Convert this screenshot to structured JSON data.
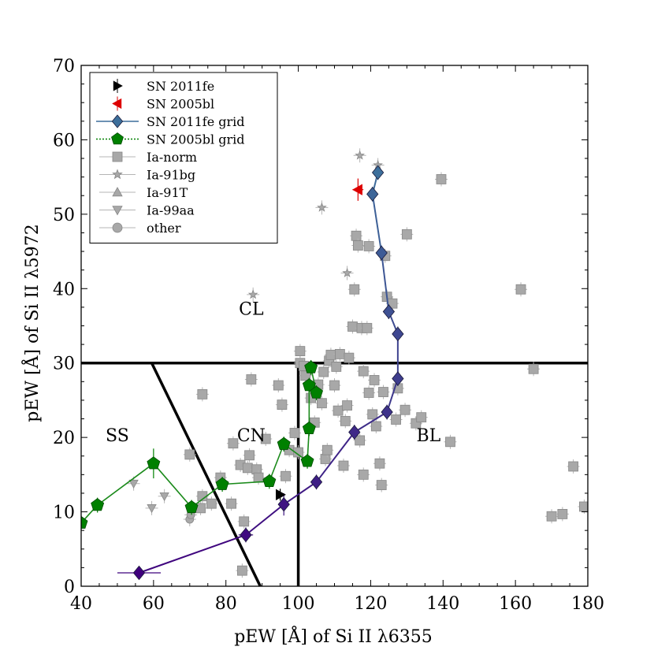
{
  "chart_data": {
    "type": "scatter",
    "xlabel": "pEW [Å] of Si II λ6355",
    "ylabel": "pEW [Å] of Si II λ5972",
    "xlim": [
      40,
      180
    ],
    "ylim": [
      0,
      70
    ],
    "xticks": [
      40,
      60,
      80,
      100,
      120,
      140,
      160,
      180
    ],
    "yticks": [
      0,
      10,
      20,
      30,
      40,
      50,
      60,
      70
    ],
    "colors": {
      "sn2011fe": "#000000",
      "sn2005bl": "#dd0000",
      "grid2011fe_a": "#3f007d",
      "grid2011fe_b": "#3d6f9b",
      "grid2005bl": "#008000",
      "grid2005bl_line": "#1a8a1a",
      "sample": "#a8a8a8",
      "sample_edge": "#888888"
    },
    "region_labels": [
      {
        "text": "CL",
        "x": 87,
        "y": 36.5
      },
      {
        "text": "SS",
        "x": 50,
        "y": 19.5
      },
      {
        "text": "CN",
        "x": 87,
        "y": 19.5
      },
      {
        "text": "BL",
        "x": 136,
        "y": 19.5
      }
    ],
    "boundary_lines": [
      {
        "x": [
          40,
          180
        ],
        "y": [
          30,
          30
        ]
      },
      {
        "x": [
          100,
          100
        ],
        "y": [
          0,
          30
        ]
      },
      {
        "x": [
          59.5,
          89.5
        ],
        "y": [
          30,
          0
        ]
      }
    ],
    "legend": [
      {
        "label": "SN 2011fe",
        "marker": "tri-right",
        "color": "#000000"
      },
      {
        "label": "SN 2005bl",
        "marker": "tri-left",
        "color": "#dd0000"
      },
      {
        "label": "SN 2011fe grid",
        "marker": "diamond",
        "color": "#3d6f9b"
      },
      {
        "label": "SN 2005bl grid",
        "marker": "pentagon",
        "color": "#008000"
      },
      {
        "label": "Ia-norm",
        "marker": "square",
        "color": "#a8a8a8"
      },
      {
        "label": "Ia-91bg",
        "marker": "star",
        "color": "#a8a8a8"
      },
      {
        "label": "Ia-91T",
        "marker": "tri-up",
        "color": "#a8a8a8"
      },
      {
        "label": "Ia-99aa",
        "marker": "tri-down",
        "color": "#a8a8a8"
      },
      {
        "label": "other",
        "marker": "circle",
        "color": "#a8a8a8"
      }
    ],
    "series": [
      {
        "name": "SN 2011fe",
        "points": [
          {
            "x": 95,
            "y": 12.3,
            "xerr": 1,
            "yerr": 0.8
          }
        ]
      },
      {
        "name": "SN 2005bl",
        "points": [
          {
            "x": 116.5,
            "y": 53.3,
            "xerr": 1.5,
            "yerr": 1.5
          }
        ]
      },
      {
        "name": "SN 2011fe grid",
        "points": [
          {
            "x": 56,
            "y": 1.8,
            "xerr": 6,
            "yerr": 0.4
          },
          {
            "x": 85.5,
            "y": 6.9,
            "xerr": 2,
            "yerr": 1
          },
          {
            "x": 96,
            "y": 11,
            "xerr": 1.5,
            "yerr": 1.5
          },
          {
            "x": 105,
            "y": 14,
            "xerr": 1.5,
            "yerr": 1
          },
          {
            "x": 115.5,
            "y": 20.7,
            "xerr": 1.5,
            "yerr": 1
          },
          {
            "x": 124.5,
            "y": 23.4,
            "xerr": 1,
            "yerr": 1
          },
          {
            "x": 127.5,
            "y": 27.9,
            "xerr": 1,
            "yerr": 1
          },
          {
            "x": 127.5,
            "y": 33.9,
            "xerr": 1,
            "yerr": 1
          },
          {
            "x": 125,
            "y": 36.9,
            "xerr": 1,
            "yerr": 1
          },
          {
            "x": 123,
            "y": 44.8,
            "xerr": 1,
            "yerr": 1
          },
          {
            "x": 120.5,
            "y": 52.7,
            "xerr": 1,
            "yerr": 1
          },
          {
            "x": 122,
            "y": 55.6,
            "xerr": 1,
            "yerr": 1
          }
        ]
      },
      {
        "name": "SN 2005bl grid",
        "points": [
          {
            "x": 40,
            "y": 8.5,
            "xerr": 1,
            "yerr": 1
          },
          {
            "x": 44.5,
            "y": 10.9,
            "xerr": 1,
            "yerr": 1
          },
          {
            "x": 60,
            "y": 16.5,
            "xerr": 1,
            "yerr": 2
          },
          {
            "x": 70.5,
            "y": 10.6,
            "xerr": 1,
            "yerr": 1
          },
          {
            "x": 79,
            "y": 13.7,
            "xerr": 1,
            "yerr": 1
          },
          {
            "x": 92,
            "y": 14.1,
            "xerr": 1,
            "yerr": 1
          },
          {
            "x": 96,
            "y": 19.1,
            "xerr": 1,
            "yerr": 1
          },
          {
            "x": 102.5,
            "y": 16.8,
            "xerr": 1,
            "yerr": 1
          },
          {
            "x": 103,
            "y": 21.2,
            "xerr": 1,
            "yerr": 1
          },
          {
            "x": 103,
            "y": 27,
            "xerr": 1,
            "yerr": 1
          },
          {
            "x": 105,
            "y": 26,
            "xerr": 1,
            "yerr": 1
          },
          {
            "x": 103.5,
            "y": 29.4,
            "xerr": 1,
            "yerr": 1
          }
        ]
      },
      {
        "name": "Ia-norm",
        "points": [
          {
            "x": 70,
            "y": 17.7
          },
          {
            "x": 73,
            "y": 10.5
          },
          {
            "x": 73.5,
            "y": 12.1
          },
          {
            "x": 73.5,
            "y": 25.8
          },
          {
            "x": 76,
            "y": 11.1
          },
          {
            "x": 78.5,
            "y": 14.6
          },
          {
            "x": 81.5,
            "y": 11.1
          },
          {
            "x": 82,
            "y": 19.2
          },
          {
            "x": 84,
            "y": 16.3
          },
          {
            "x": 85,
            "y": 8.7
          },
          {
            "x": 86,
            "y": 15.9
          },
          {
            "x": 86.5,
            "y": 17.6
          },
          {
            "x": 87,
            "y": 27.8
          },
          {
            "x": 88.5,
            "y": 15.7
          },
          {
            "x": 89,
            "y": 14.6
          },
          {
            "x": 84.5,
            "y": 2.1
          },
          {
            "x": 91,
            "y": 19.8
          },
          {
            "x": 94.5,
            "y": 27
          },
          {
            "x": 95.5,
            "y": 24.4
          },
          {
            "x": 96.5,
            "y": 14.8
          },
          {
            "x": 97.5,
            "y": 18.3
          },
          {
            "x": 99,
            "y": 20.6
          },
          {
            "x": 100,
            "y": 18
          },
          {
            "x": 100.5,
            "y": 30
          },
          {
            "x": 100.5,
            "y": 31.6
          },
          {
            "x": 101.5,
            "y": 29.6
          },
          {
            "x": 102,
            "y": 28.3
          },
          {
            "x": 103.5,
            "y": 25.3
          },
          {
            "x": 104.5,
            "y": 22
          },
          {
            "x": 105.5,
            "y": 27.1
          },
          {
            "x": 106.5,
            "y": 24.6
          },
          {
            "x": 107,
            "y": 28.8
          },
          {
            "x": 107.5,
            "y": 17.1
          },
          {
            "x": 108,
            "y": 18.3
          },
          {
            "x": 108.5,
            "y": 30.3
          },
          {
            "x": 109,
            "y": 31.1
          },
          {
            "x": 110,
            "y": 27
          },
          {
            "x": 110.5,
            "y": 29.5
          },
          {
            "x": 111,
            "y": 23.6
          },
          {
            "x": 111.5,
            "y": 31.2
          },
          {
            "x": 112.5,
            "y": 16.2
          },
          {
            "x": 113,
            "y": 22.2
          },
          {
            "x": 113.5,
            "y": 24.3
          },
          {
            "x": 114,
            "y": 30.7
          },
          {
            "x": 115,
            "y": 34.9
          },
          {
            "x": 115.5,
            "y": 39.9
          },
          {
            "x": 116,
            "y": 47.1
          },
          {
            "x": 116.5,
            "y": 45.8
          },
          {
            "x": 117,
            "y": 19.6
          },
          {
            "x": 117.5,
            "y": 34.7
          },
          {
            "x": 118,
            "y": 28.9
          },
          {
            "x": 118,
            "y": 15
          },
          {
            "x": 119.5,
            "y": 26
          },
          {
            "x": 119,
            "y": 34.7
          },
          {
            "x": 119.5,
            "y": 45.7
          },
          {
            "x": 120.5,
            "y": 23.1
          },
          {
            "x": 121,
            "y": 27.7
          },
          {
            "x": 121.5,
            "y": 21.5
          },
          {
            "x": 122.5,
            "y": 16.5
          },
          {
            "x": 123,
            "y": 13.6
          },
          {
            "x": 123.5,
            "y": 26.1
          },
          {
            "x": 124,
            "y": 44.4
          },
          {
            "x": 124.5,
            "y": 38.9
          },
          {
            "x": 126,
            "y": 38
          },
          {
            "x": 127,
            "y": 22.4
          },
          {
            "x": 127.5,
            "y": 26.6
          },
          {
            "x": 129.5,
            "y": 23.7
          },
          {
            "x": 130,
            "y": 47.3
          },
          {
            "x": 132.5,
            "y": 21.9
          },
          {
            "x": 134,
            "y": 22.7
          },
          {
            "x": 139.5,
            "y": 54.7
          },
          {
            "x": 142,
            "y": 19.4
          },
          {
            "x": 161.5,
            "y": 39.9
          },
          {
            "x": 165,
            "y": 29.2
          },
          {
            "x": 170,
            "y": 9.4
          },
          {
            "x": 173,
            "y": 9.7
          },
          {
            "x": 176,
            "y": 16.1
          },
          {
            "x": 179,
            "y": 10.7
          }
        ]
      },
      {
        "name": "Ia-91bg",
        "points": [
          {
            "x": 87.5,
            "y": 39.2
          },
          {
            "x": 106.5,
            "y": 50.9
          },
          {
            "x": 113.5,
            "y": 42.1
          },
          {
            "x": 117,
            "y": 57.9
          },
          {
            "x": 122,
            "y": 56.6
          }
        ]
      },
      {
        "name": "Ia-91T",
        "points": []
      },
      {
        "name": "Ia-99aa",
        "points": [
          {
            "x": 54.5,
            "y": 13.8
          },
          {
            "x": 59.5,
            "y": 10.5
          },
          {
            "x": 63,
            "y": 12.1
          }
        ]
      },
      {
        "name": "other",
        "points": [
          {
            "x": 70,
            "y": 9
          },
          {
            "x": 70.3,
            "y": 9.6
          }
        ]
      }
    ]
  }
}
